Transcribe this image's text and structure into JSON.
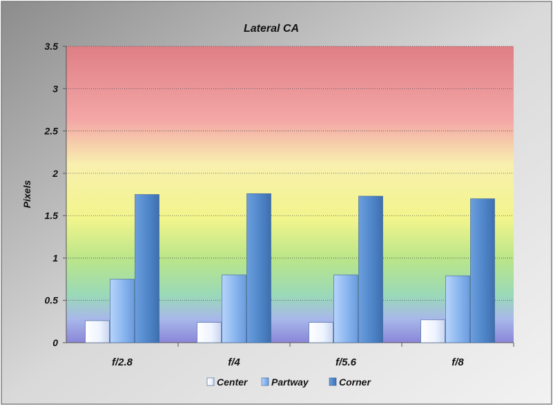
{
  "chart_data": {
    "type": "bar",
    "title": "Lateral CA",
    "xlabel": "",
    "ylabel": "Pixels",
    "ylim": [
      0,
      3.5
    ],
    "yticks": [
      0,
      0.5,
      1,
      1.5,
      2,
      2.5,
      3,
      3.5
    ],
    "ytick_labels": [
      "0",
      "0.5",
      "1",
      "1.5",
      "2",
      "2.5",
      "3",
      "3.5"
    ],
    "categories": [
      "f/2.8",
      "f/4",
      "f/5.6",
      "f/8"
    ],
    "series": [
      {
        "name": "Center",
        "values": [
          0.26,
          0.24,
          0.24,
          0.27
        ]
      },
      {
        "name": "Partway",
        "values": [
          0.75,
          0.8,
          0.8,
          0.79
        ]
      },
      {
        "name": "Corner",
        "values": [
          1.75,
          1.76,
          1.73,
          1.7
        ]
      }
    ],
    "grid": true,
    "legend": "bottom",
    "colors": {
      "Center": "#f2f6ff",
      "Partway": "#8fbaf0",
      "Corner": "#4f86c9",
      "gridline": "#444444",
      "plot_top": "#e07f86",
      "plot_bottom": "#8a86d8"
    }
  }
}
